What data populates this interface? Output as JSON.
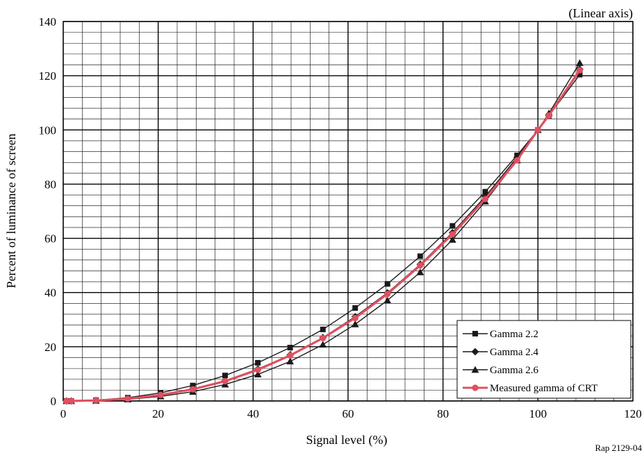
{
  "chart_data": {
    "type": "line",
    "title": "",
    "scale_note": "(Linear axis)",
    "xlabel": "Signal level (%)",
    "ylabel": "Percent of luminance of screen",
    "xlim": [
      0,
      120
    ],
    "ylim": [
      0,
      140
    ],
    "xticks": [
      0,
      20,
      40,
      60,
      80,
      100,
      120
    ],
    "yticks": [
      0,
      20,
      40,
      60,
      80,
      100,
      120,
      140
    ],
    "grid": true,
    "legend_position": "bottom-right",
    "reference": "Rap 2129-04",
    "x": [
      0.68,
      1.7,
      6.9,
      13.6,
      20.5,
      27.3,
      34.1,
      41.0,
      47.8,
      54.7,
      61.5,
      68.3,
      75.2,
      82.0,
      88.9,
      95.6,
      100.0,
      102.3,
      108.8
    ],
    "series": [
      {
        "name": "Gamma 2.2",
        "marker": "square",
        "color": "#1a1a1a",
        "values": [
          0.0,
          0.01,
          0.3,
          1.2,
          3.0,
          5.7,
          9.4,
          14.1,
          19.7,
          26.4,
          34.3,
          43.2,
          53.4,
          64.6,
          77.2,
          90.6,
          100.0,
          105.2,
          120.4
        ]
      },
      {
        "name": "Gamma 2.4",
        "marker": "diamond",
        "color": "#1a1a1a",
        "values": [
          0.0,
          0.0,
          0.2,
          0.8,
          2.2,
          4.5,
          7.5,
          11.8,
          17.0,
          23.4,
          31.1,
          39.9,
          50.4,
          62.1,
          75.4,
          89.8,
          100.0,
          105.6,
          122.4
        ]
      },
      {
        "name": "Gamma 2.6",
        "marker": "triangle",
        "color": "#1a1a1a",
        "values": [
          0.0,
          0.0,
          0.1,
          0.6,
          1.7,
          3.4,
          6.1,
          9.8,
          14.6,
          20.8,
          28.3,
          37.1,
          47.5,
          59.5,
          73.6,
          88.8,
          100.0,
          106.1,
          124.7
        ]
      },
      {
        "name": "Measured gamma of CRT",
        "marker": "circle",
        "color": "#e05060",
        "values": [
          0.0,
          0.0,
          0.2,
          0.8,
          2.2,
          4.3,
          7.3,
          11.5,
          16.8,
          23.2,
          30.6,
          39.5,
          50.0,
          61.5,
          74.5,
          88.8,
          100.0,
          105.3,
          122.0
        ]
      }
    ]
  }
}
